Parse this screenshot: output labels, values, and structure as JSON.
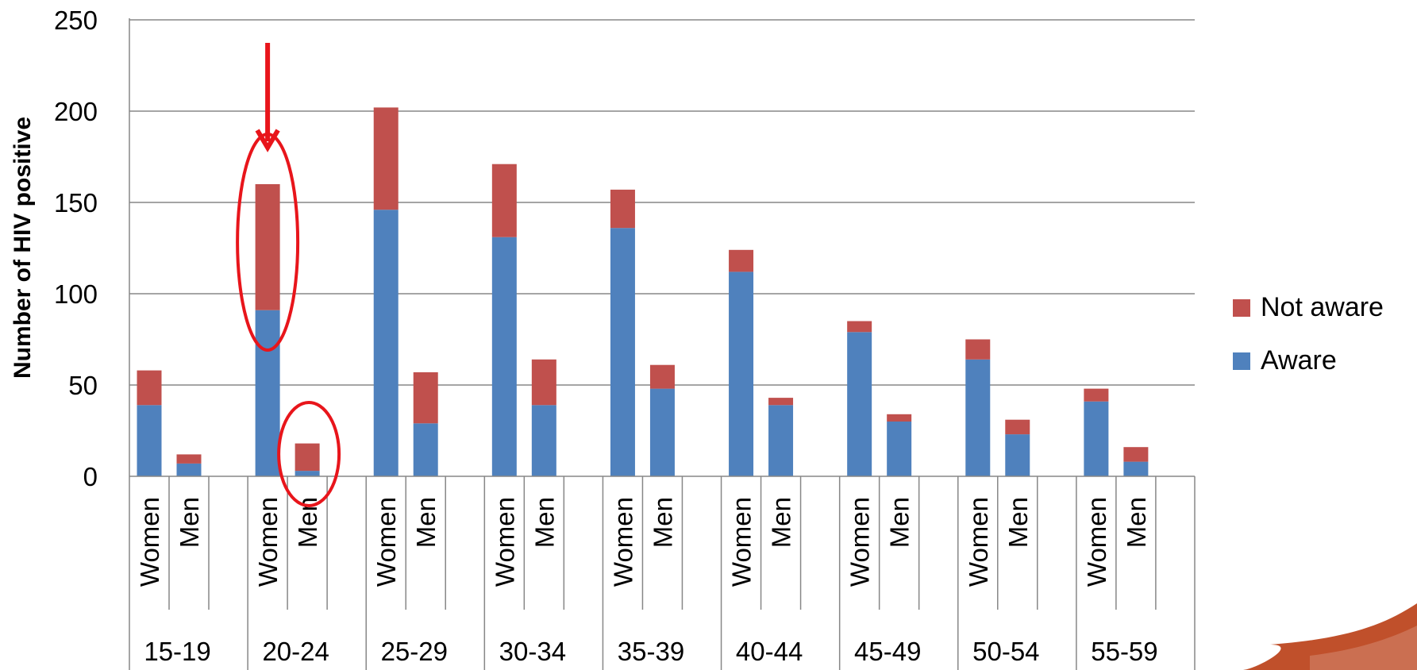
{
  "chart_data": {
    "type": "bar",
    "stacked": true,
    "ylabel": "Number of HIV positive",
    "ylim": [
      0,
      250
    ],
    "yticks": [
      0,
      50,
      100,
      150,
      200,
      250
    ],
    "grid": true,
    "legend_position": "right",
    "groups": [
      "15-19",
      "20-24",
      "25-29",
      "30-34",
      "35-39",
      "40-44",
      "45-49",
      "50-54",
      "55-59"
    ],
    "subcategories": [
      "Women",
      "Men"
    ],
    "series": [
      {
        "name": "Aware",
        "color": "#4F81BD",
        "values": [
          [
            39,
            7
          ],
          [
            91,
            3
          ],
          [
            146,
            29
          ],
          [
            131,
            39
          ],
          [
            136,
            48
          ],
          [
            112,
            39
          ],
          [
            79,
            30
          ],
          [
            64,
            23
          ],
          [
            41,
            8
          ]
        ]
      },
      {
        "name": "Not aware",
        "color": "#C0504D",
        "values": [
          [
            19,
            5
          ],
          [
            69,
            15
          ],
          [
            56,
            28
          ],
          [
            40,
            25
          ],
          [
            21,
            13
          ],
          [
            12,
            4
          ],
          [
            6,
            4
          ],
          [
            11,
            8
          ],
          [
            7,
            8
          ]
        ]
      }
    ],
    "legend": [
      "Not aware",
      "Aware"
    ],
    "annotations": {
      "highlight_group": "20-24",
      "arrow_color": "#E8151B",
      "ellipse_color": "#E8151B"
    }
  },
  "decor": {
    "corner_swoosh_color": "#C0502B"
  }
}
